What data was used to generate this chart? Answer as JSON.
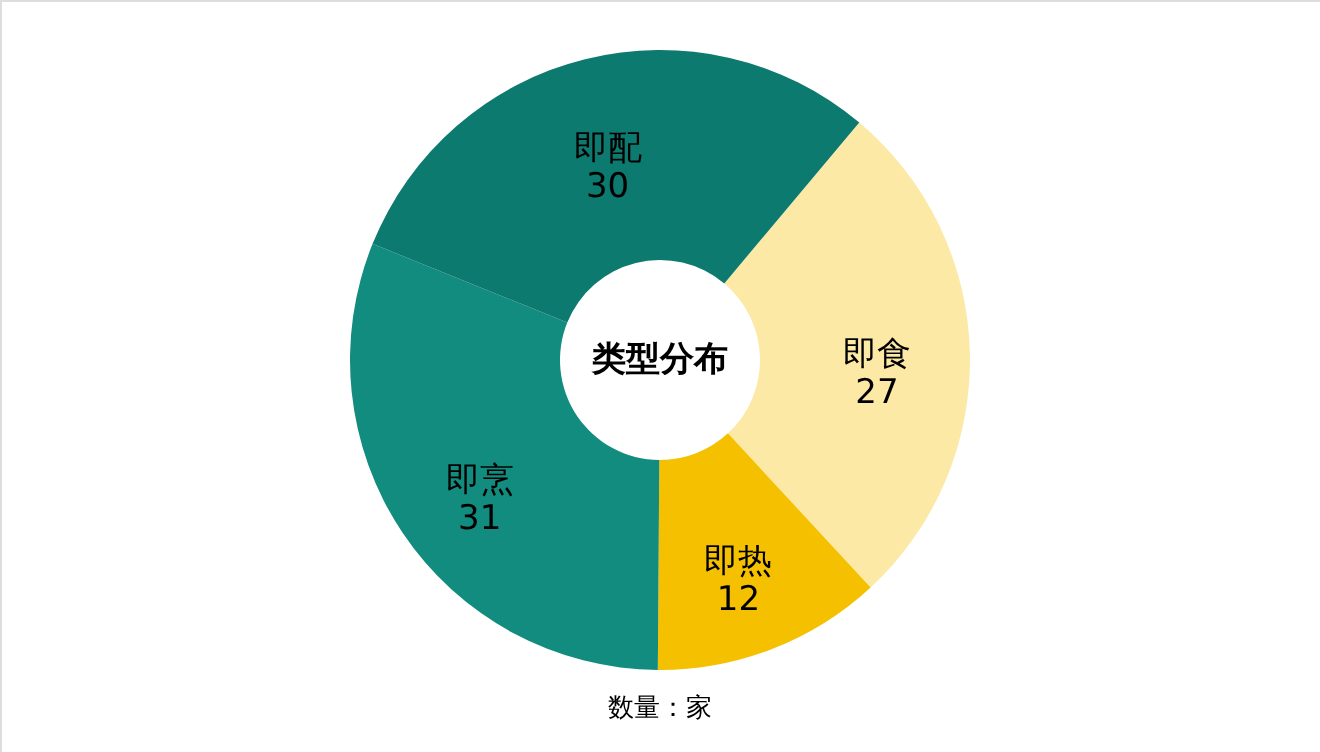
{
  "chart_data": {
    "type": "donut",
    "title": "类型分布",
    "categories": [
      "即食",
      "即热",
      "即烹",
      "即配"
    ],
    "values": [
      27,
      12,
      31,
      30
    ],
    "colors": [
      "#fde9a6",
      "#f5c000",
      "#138c80",
      "#0d7a70"
    ],
    "data_labels": true,
    "annotations": [
      "数量：家"
    ]
  }
}
